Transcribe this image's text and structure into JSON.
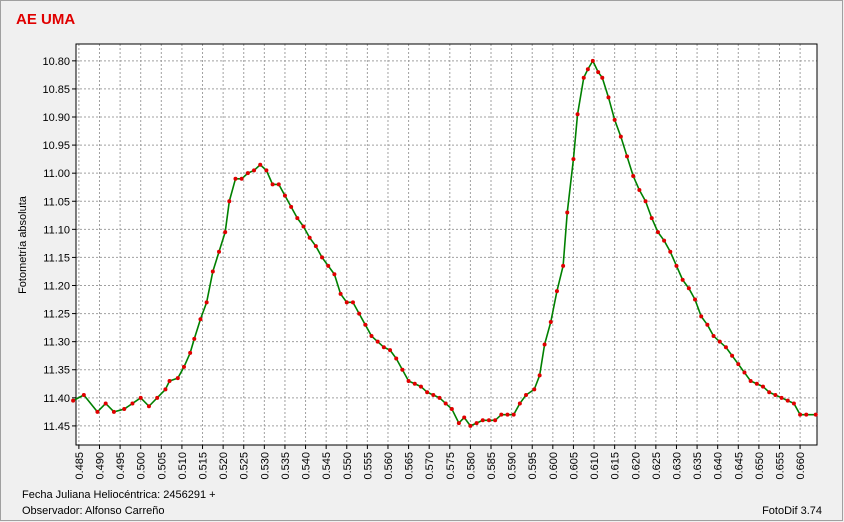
{
  "chart_data": {
    "type": "scatter-line",
    "title": "AE UMA",
    "y_label": "Fotometría absoluta",
    "footer_left": "Fecha Juliana Heliocéntrica: 2456291 +",
    "observer": "Observador: Alfonso Carreño",
    "software": "FotoDif 3.74",
    "y_inverted": true,
    "grid": true,
    "xlim": [
      0.4843,
      0.6641
    ],
    "ylim": [
      10.77,
      11.484
    ],
    "xticks": [
      {
        "value": 0.485,
        "label": "0.485"
      },
      {
        "value": 0.49,
        "label": "0.490"
      },
      {
        "value": 0.495,
        "label": "0.495"
      },
      {
        "value": 0.5,
        "label": "0.500"
      },
      {
        "value": 0.505,
        "label": "0.505"
      },
      {
        "value": 0.51,
        "label": "0.510"
      },
      {
        "value": 0.515,
        "label": "0.515"
      },
      {
        "value": 0.52,
        "label": "0.520"
      },
      {
        "value": 0.525,
        "label": "0.525"
      },
      {
        "value": 0.53,
        "label": "0.530"
      },
      {
        "value": 0.535,
        "label": "0.535"
      },
      {
        "value": 0.54,
        "label": "0.540"
      },
      {
        "value": 0.545,
        "label": "0.545"
      },
      {
        "value": 0.55,
        "label": "0.550"
      },
      {
        "value": 0.555,
        "label": "0.555"
      },
      {
        "value": 0.56,
        "label": "0.560"
      },
      {
        "value": 0.565,
        "label": "0.565"
      },
      {
        "value": 0.57,
        "label": "0.570"
      },
      {
        "value": 0.575,
        "label": "0.575"
      },
      {
        "value": 0.58,
        "label": "0.580"
      },
      {
        "value": 0.585,
        "label": "0.585"
      },
      {
        "value": 0.59,
        "label": "0.590"
      },
      {
        "value": 0.595,
        "label": "0.595"
      },
      {
        "value": 0.6,
        "label": "0.600"
      },
      {
        "value": 0.605,
        "label": "0.605"
      },
      {
        "value": 0.61,
        "label": "0.610"
      },
      {
        "value": 0.615,
        "label": "0.615"
      },
      {
        "value": 0.62,
        "label": "0.620"
      },
      {
        "value": 0.625,
        "label": "0.625"
      },
      {
        "value": 0.63,
        "label": "0.630"
      },
      {
        "value": 0.635,
        "label": "0.635"
      },
      {
        "value": 0.64,
        "label": "0.640"
      },
      {
        "value": 0.645,
        "label": "0.645"
      },
      {
        "value": 0.65,
        "label": "0.650"
      },
      {
        "value": 0.655,
        "label": "0.655"
      },
      {
        "value": 0.66,
        "label": "0.660"
      }
    ],
    "yticks": [
      {
        "value": 10.8,
        "label": "10.80"
      },
      {
        "value": 10.85,
        "label": "10.85"
      },
      {
        "value": 10.9,
        "label": "10.90"
      },
      {
        "value": 10.95,
        "label": "10.95"
      },
      {
        "value": 11,
        "label": "11.00"
      },
      {
        "value": 11.05,
        "label": "11.05"
      },
      {
        "value": 11.1,
        "label": "11.10"
      },
      {
        "value": 11.15,
        "label": "11.15"
      },
      {
        "value": 11.2,
        "label": "11.20"
      },
      {
        "value": 11.25,
        "label": "11.25"
      },
      {
        "value": 11.3,
        "label": "11.30"
      },
      {
        "value": 11.35,
        "label": "11.35"
      },
      {
        "value": 11.4,
        "label": "11.40"
      },
      {
        "value": 11.45,
        "label": "11.45"
      }
    ],
    "point_color": "#e00000",
    "line_color": "#008000",
    "x": [
      0.4836,
      0.4862,
      0.4895,
      0.4915,
      0.4935,
      0.496,
      0.498,
      0.5,
      0.502,
      0.504,
      0.506,
      0.507,
      0.509,
      0.5105,
      0.512,
      0.513,
      0.5145,
      0.516,
      0.5175,
      0.519,
      0.5205,
      0.5215,
      0.523,
      0.5245,
      0.526,
      0.5275,
      0.529,
      0.5305,
      0.532,
      0.5335,
      0.535,
      0.5365,
      0.538,
      0.5395,
      0.541,
      0.5425,
      0.544,
      0.5455,
      0.547,
      0.5485,
      0.55,
      0.5515,
      0.553,
      0.5545,
      0.556,
      0.5575,
      0.559,
      0.5605,
      0.562,
      0.5635,
      0.565,
      0.5665,
      0.568,
      0.5695,
      0.571,
      0.5725,
      0.574,
      0.5755,
      0.5772,
      0.5785,
      0.58,
      0.5815,
      0.583,
      0.5845,
      0.586,
      0.5875,
      0.589,
      0.5905,
      0.592,
      0.5935,
      0.5955,
      0.5968,
      0.598,
      0.5995,
      0.601,
      0.6025,
      0.6035,
      0.605,
      0.606,
      0.6075,
      0.6085,
      0.6097,
      0.611,
      0.612,
      0.6135,
      0.615,
      0.6165,
      0.618,
      0.6195,
      0.621,
      0.6225,
      0.624,
      0.6255,
      0.627,
      0.6285,
      0.63,
      0.6315,
      0.633,
      0.6345,
      0.636,
      0.6375,
      0.639,
      0.6405,
      0.642,
      0.6435,
      0.645,
      0.6465,
      0.648,
      0.6495,
      0.651,
      0.6525,
      0.654,
      0.6555,
      0.657,
      0.6585,
      0.66,
      0.6615,
      0.6638
    ],
    "values": [
      11.405,
      11.395,
      11.425,
      11.41,
      11.425,
      11.42,
      11.41,
      11.4,
      11.415,
      11.4,
      11.385,
      11.37,
      11.365,
      11.345,
      11.32,
      11.295,
      11.26,
      11.23,
      11.175,
      11.14,
      11.105,
      11.05,
      11.01,
      11.01,
      11.0,
      10.995,
      10.985,
      10.995,
      11.02,
      11.02,
      11.04,
      11.06,
      11.08,
      11.095,
      11.115,
      11.13,
      11.15,
      11.165,
      11.18,
      11.215,
      11.23,
      11.23,
      11.25,
      11.27,
      11.29,
      11.3,
      11.31,
      11.315,
      11.33,
      11.35,
      11.37,
      11.375,
      11.38,
      11.39,
      11.395,
      11.4,
      11.41,
      11.42,
      11.445,
      11.435,
      11.45,
      11.445,
      11.44,
      11.44,
      11.44,
      11.43,
      11.43,
      11.43,
      11.41,
      11.395,
      11.385,
      11.36,
      11.305,
      11.265,
      11.21,
      11.165,
      11.07,
      10.975,
      10.895,
      10.83,
      10.815,
      10.8,
      10.82,
      10.83,
      10.865,
      10.905,
      10.935,
      10.97,
      11.005,
      11.03,
      11.05,
      11.08,
      11.105,
      11.12,
      11.14,
      11.165,
      11.19,
      11.205,
      11.225,
      11.255,
      11.27,
      11.29,
      11.3,
      11.31,
      11.325,
      11.34,
      11.355,
      11.37,
      11.375,
      11.38,
      11.39,
      11.395,
      11.4,
      11.405,
      11.41,
      11.43,
      11.43,
      11.43
    ]
  }
}
